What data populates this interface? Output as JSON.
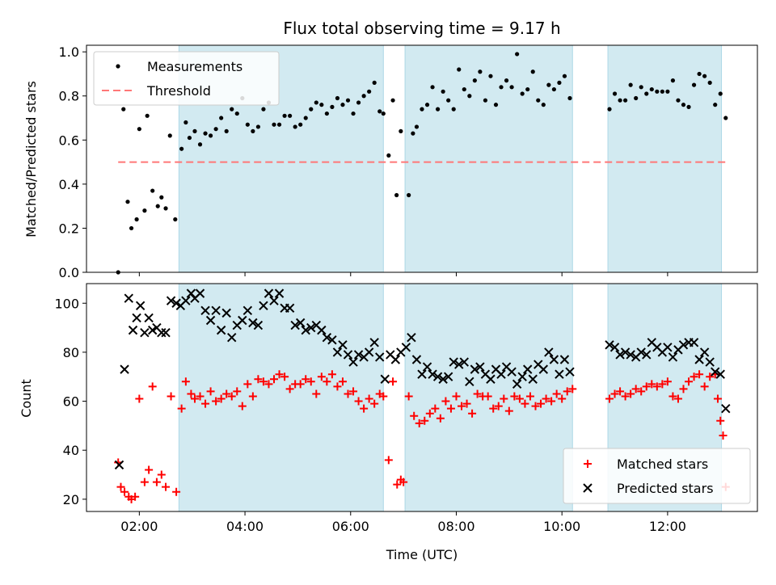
{
  "title": "Flux total observing time = 9.17 h",
  "shade_color": "#add8e6",
  "chart_data": [
    {
      "type": "scatter",
      "ylabel": "Matched/Predicted stars",
      "xlim": [
        1.0,
        13.7
      ],
      "ylim": [
        0,
        1.03
      ],
      "yticks": [
        0.0,
        0.2,
        0.4,
        0.6,
        0.8,
        1.0
      ],
      "ytick_labels": [
        "0.0",
        "0.2",
        "0.4",
        "0.6",
        "0.8",
        "1.0"
      ],
      "xticks": [
        2,
        4,
        6,
        8,
        10,
        12
      ],
      "shaded_intervals": [
        [
          2.75,
          6.62
        ],
        [
          7.03,
          10.2
        ],
        [
          10.87,
          13.02
        ]
      ],
      "threshold": {
        "name": "Threshold",
        "y": 0.5,
        "x": [
          1.6,
          13.1
        ],
        "color": "#ff7777"
      },
      "legend": {
        "placement": "top-left",
        "entries": [
          "Measurements",
          "Threshold"
        ]
      },
      "series": [
        {
          "name": "Measurements",
          "color": "#000000",
          "x": [
            1.6,
            1.7,
            1.78,
            1.85,
            1.95,
            2.0,
            2.1,
            2.15,
            2.25,
            2.35,
            2.42,
            2.5,
            2.58,
            2.68,
            2.8,
            2.88,
            2.95,
            3.05,
            3.15,
            3.25,
            3.35,
            3.45,
            3.55,
            3.65,
            3.75,
            3.85,
            3.95,
            4.05,
            4.15,
            4.25,
            4.35,
            4.45,
            4.55,
            4.65,
            4.75,
            4.85,
            4.95,
            5.05,
            5.15,
            5.25,
            5.35,
            5.45,
            5.55,
            5.65,
            5.75,
            5.85,
            5.95,
            6.05,
            6.15,
            6.25,
            6.35,
            6.45,
            6.55,
            6.62,
            6.72,
            6.8,
            6.87,
            6.95,
            7.1,
            7.18,
            7.25,
            7.35,
            7.45,
            7.55,
            7.65,
            7.75,
            7.85,
            7.95,
            8.05,
            8.15,
            8.25,
            8.35,
            8.45,
            8.55,
            8.65,
            8.75,
            8.85,
            8.95,
            9.05,
            9.15,
            9.25,
            9.35,
            9.45,
            9.55,
            9.65,
            9.75,
            9.85,
            9.95,
            10.05,
            10.15,
            10.9,
            11.0,
            11.1,
            11.2,
            11.3,
            11.4,
            11.5,
            11.6,
            11.7,
            11.8,
            11.9,
            12.0,
            12.1,
            12.2,
            12.3,
            12.4,
            12.5,
            12.6,
            12.7,
            12.8,
            12.9,
            13.0,
            13.1
          ],
          "y": [
            0.0,
            0.74,
            0.32,
            0.2,
            0.24,
            0.65,
            0.28,
            0.71,
            0.37,
            0.3,
            0.34,
            0.29,
            0.62,
            0.24,
            0.56,
            0.68,
            0.61,
            0.64,
            0.58,
            0.63,
            0.62,
            0.65,
            0.7,
            0.64,
            0.74,
            0.72,
            0.79,
            0.67,
            0.64,
            0.66,
            0.74,
            0.77,
            0.67,
            0.67,
            0.71,
            0.71,
            0.66,
            0.67,
            0.7,
            0.74,
            0.77,
            0.76,
            0.72,
            0.75,
            0.79,
            0.76,
            0.78,
            0.72,
            0.77,
            0.8,
            0.82,
            0.86,
            0.73,
            0.72,
            0.53,
            0.78,
            0.35,
            0.64,
            0.35,
            0.63,
            0.66,
            0.74,
            0.76,
            0.84,
            0.74,
            0.82,
            0.78,
            0.74,
            0.92,
            0.83,
            0.8,
            0.87,
            0.91,
            0.78,
            0.89,
            0.76,
            0.84,
            0.87,
            0.84,
            0.99,
            0.81,
            0.83,
            0.91,
            0.78,
            0.76,
            0.85,
            0.83,
            0.86,
            0.89,
            0.79,
            0.74,
            0.81,
            0.78,
            0.78,
            0.85,
            0.79,
            0.84,
            0.81,
            0.83,
            0.82,
            0.82,
            0.82,
            0.87,
            0.78,
            0.76,
            0.75,
            0.85,
            0.9,
            0.89,
            0.86,
            0.76,
            0.81,
            0.7
          ]
        }
      ]
    },
    {
      "type": "scatter",
      "xlabel": "Time (UTC)",
      "ylabel": "Count",
      "xlim": [
        1.0,
        13.7
      ],
      "ylim": [
        15,
        108
      ],
      "yticks": [
        20,
        40,
        60,
        80,
        100
      ],
      "ytick_labels": [
        "20",
        "40",
        "60",
        "80",
        "100"
      ],
      "xticks": [
        2,
        4,
        6,
        8,
        10,
        12
      ],
      "xtick_labels": [
        "02:00",
        "04:00",
        "06:00",
        "08:00",
        "10:00",
        "12:00"
      ],
      "shaded_intervals": [
        [
          2.75,
          6.62
        ],
        [
          7.03,
          10.2
        ],
        [
          10.87,
          13.02
        ]
      ],
      "legend": {
        "placement": "bottom-right",
        "entries": [
          "Matched stars",
          "Predicted stars"
        ]
      },
      "series": [
        {
          "name": "Matched stars",
          "color": "#ff0000",
          "marker": "plus",
          "x": [
            1.6,
            1.65,
            1.72,
            1.8,
            1.85,
            1.92,
            2.0,
            2.1,
            2.18,
            2.25,
            2.33,
            2.42,
            2.5,
            2.6,
            2.7,
            2.8,
            2.88,
            2.98,
            3.05,
            3.15,
            3.25,
            3.35,
            3.45,
            3.55,
            3.65,
            3.75,
            3.85,
            3.95,
            4.05,
            4.15,
            4.25,
            4.35,
            4.45,
            4.55,
            4.65,
            4.75,
            4.85,
            4.95,
            5.05,
            5.15,
            5.25,
            5.35,
            5.45,
            5.55,
            5.65,
            5.75,
            5.85,
            5.95,
            6.05,
            6.15,
            6.25,
            6.35,
            6.45,
            6.55,
            6.62,
            6.72,
            6.8,
            6.88,
            6.95,
            7.0,
            7.1,
            7.2,
            7.3,
            7.4,
            7.5,
            7.6,
            7.7,
            7.8,
            7.9,
            8.0,
            8.1,
            8.2,
            8.3,
            8.4,
            8.5,
            8.6,
            8.7,
            8.8,
            8.9,
            9.0,
            9.1,
            9.2,
            9.3,
            9.4,
            9.5,
            9.6,
            9.7,
            9.8,
            9.9,
            10.0,
            10.1,
            10.2,
            10.9,
            11.0,
            11.1,
            11.2,
            11.3,
            11.4,
            11.5,
            11.6,
            11.7,
            11.8,
            11.9,
            12.0,
            12.1,
            12.2,
            12.3,
            12.4,
            12.5,
            12.6,
            12.7,
            12.8,
            12.9,
            12.95,
            13.0,
            13.05,
            13.1
          ],
          "y": [
            35,
            25,
            23,
            21,
            20,
            21,
            61,
            27,
            32,
            66,
            27,
            30,
            25,
            62,
            23,
            57,
            68,
            63,
            61,
            62,
            59,
            64,
            60,
            61,
            63,
            62,
            64,
            58,
            67,
            62,
            69,
            68,
            67,
            69,
            71,
            70,
            65,
            67,
            67,
            69,
            68,
            63,
            70,
            68,
            71,
            66,
            68,
            63,
            64,
            60,
            57,
            61,
            59,
            63,
            62,
            36,
            68,
            26,
            28,
            27,
            62,
            54,
            51,
            52,
            55,
            57,
            53,
            60,
            57,
            62,
            58,
            59,
            55,
            63,
            62,
            62,
            57,
            58,
            61,
            56,
            62,
            61,
            59,
            62,
            58,
            59,
            61,
            60,
            63,
            61,
            64,
            65,
            61,
            63,
            64,
            62,
            63,
            65,
            64,
            66,
            67,
            66,
            67,
            68,
            62,
            61,
            65,
            68,
            70,
            71,
            66,
            70,
            71,
            61,
            52,
            46,
            25
          ]
        },
        {
          "name": "Predicted stars",
          "color": "#000000",
          "marker": "x",
          "x": [
            1.62,
            1.72,
            1.8,
            1.88,
            1.95,
            2.02,
            2.1,
            2.18,
            2.25,
            2.33,
            2.42,
            2.5,
            2.6,
            2.7,
            2.78,
            2.88,
            2.98,
            3.05,
            3.15,
            3.25,
            3.35,
            3.45,
            3.55,
            3.65,
            3.75,
            3.85,
            3.95,
            4.05,
            4.15,
            4.25,
            4.35,
            4.45,
            4.55,
            4.65,
            4.75,
            4.85,
            4.95,
            5.05,
            5.15,
            5.25,
            5.35,
            5.45,
            5.55,
            5.65,
            5.75,
            5.85,
            5.95,
            6.05,
            6.15,
            6.25,
            6.35,
            6.45,
            6.55,
            6.65,
            6.75,
            6.85,
            6.95,
            7.05,
            7.15,
            7.25,
            7.35,
            7.45,
            7.55,
            7.65,
            7.75,
            7.85,
            7.95,
            8.05,
            8.15,
            8.25,
            8.35,
            8.45,
            8.55,
            8.65,
            8.75,
            8.85,
            8.95,
            9.05,
            9.15,
            9.25,
            9.35,
            9.45,
            9.55,
            9.65,
            9.75,
            9.85,
            9.95,
            10.05,
            10.15,
            10.9,
            11.0,
            11.1,
            11.2,
            11.3,
            11.4,
            11.5,
            11.6,
            11.7,
            11.8,
            11.9,
            12.0,
            12.1,
            12.2,
            12.3,
            12.4,
            12.5,
            12.6,
            12.7,
            12.8,
            12.9,
            13.0,
            13.1
          ],
          "y": [
            34,
            73,
            102,
            89,
            94,
            99,
            88,
            94,
            89,
            90,
            88,
            88,
            101,
            100,
            99,
            101,
            104,
            102,
            104,
            97,
            93,
            97,
            89,
            96,
            86,
            91,
            93,
            97,
            92,
            91,
            99,
            104,
            101,
            104,
            98,
            98,
            91,
            92,
            89,
            90,
            91,
            89,
            86,
            85,
            80,
            83,
            79,
            76,
            79,
            78,
            80,
            84,
            78,
            69,
            79,
            77,
            80,
            82,
            86,
            77,
            71,
            74,
            71,
            70,
            69,
            70,
            76,
            75,
            76,
            68,
            73,
            74,
            71,
            69,
            73,
            71,
            74,
            72,
            67,
            70,
            73,
            69,
            75,
            73,
            80,
            77,
            71,
            77,
            72,
            83,
            82,
            79,
            80,
            79,
            78,
            80,
            79,
            84,
            82,
            80,
            82,
            78,
            81,
            83,
            84,
            84,
            77,
            80,
            76,
            72,
            71,
            57
          ]
        }
      ]
    }
  ]
}
